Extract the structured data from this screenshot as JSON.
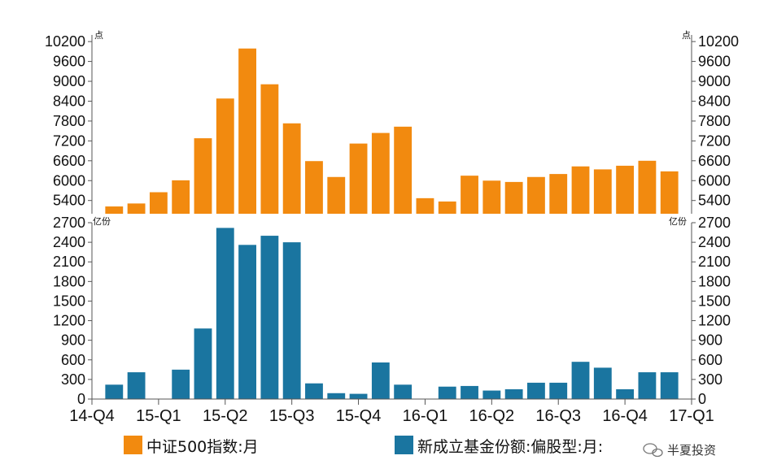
{
  "chart_data": [
    {
      "type": "bar",
      "panel": "top",
      "unit_left": "点",
      "unit_right": "点",
      "ylim": [
        5000,
        10400
      ],
      "yticks": [
        5400,
        6000,
        6600,
        7200,
        7800,
        8400,
        9000,
        9600,
        10200
      ],
      "series": [
        {
          "name": "中证500指数:月",
          "color": "#f28a0f",
          "values": [
            5220,
            5310,
            5650,
            6010,
            7280,
            8480,
            9990,
            8910,
            7730,
            6590,
            6110,
            7120,
            7440,
            7630,
            5470,
            5370,
            6150,
            6000,
            5960,
            6110,
            6200,
            6430,
            6340,
            6450,
            6600,
            6280
          ]
        }
      ]
    },
    {
      "type": "bar",
      "panel": "bottom",
      "unit_left": "亿份",
      "unit_right": "亿份",
      "ylim": [
        0,
        2700
      ],
      "yticks": [
        0,
        300,
        600,
        900,
        1200,
        1500,
        1800,
        2100,
        2400,
        2700
      ],
      "series": [
        {
          "name": "新成立基金份额:偏股型:月:",
          "color": "#1a75a0",
          "values": [
            220,
            410,
            0,
            450,
            1080,
            2620,
            2360,
            2500,
            2400,
            240,
            90,
            80,
            560,
            220,
            0,
            190,
            200,
            130,
            150,
            250,
            250,
            570,
            480,
            150,
            410,
            410
          ]
        }
      ]
    }
  ],
  "x_axis": {
    "labels": [
      "14-Q4",
      "15-Q1",
      "15-Q2",
      "15-Q3",
      "15-Q4",
      "16-Q1",
      "16-Q2",
      "16-Q3",
      "16-Q4",
      "17-Q1"
    ]
  },
  "legend": [
    {
      "label": "中证500指数:月",
      "color": "#f28a0f"
    },
    {
      "label": "新成立基金份额:偏股型:月:",
      "color": "#1a75a0"
    }
  ],
  "watermark": {
    "text": "半夏投资"
  }
}
